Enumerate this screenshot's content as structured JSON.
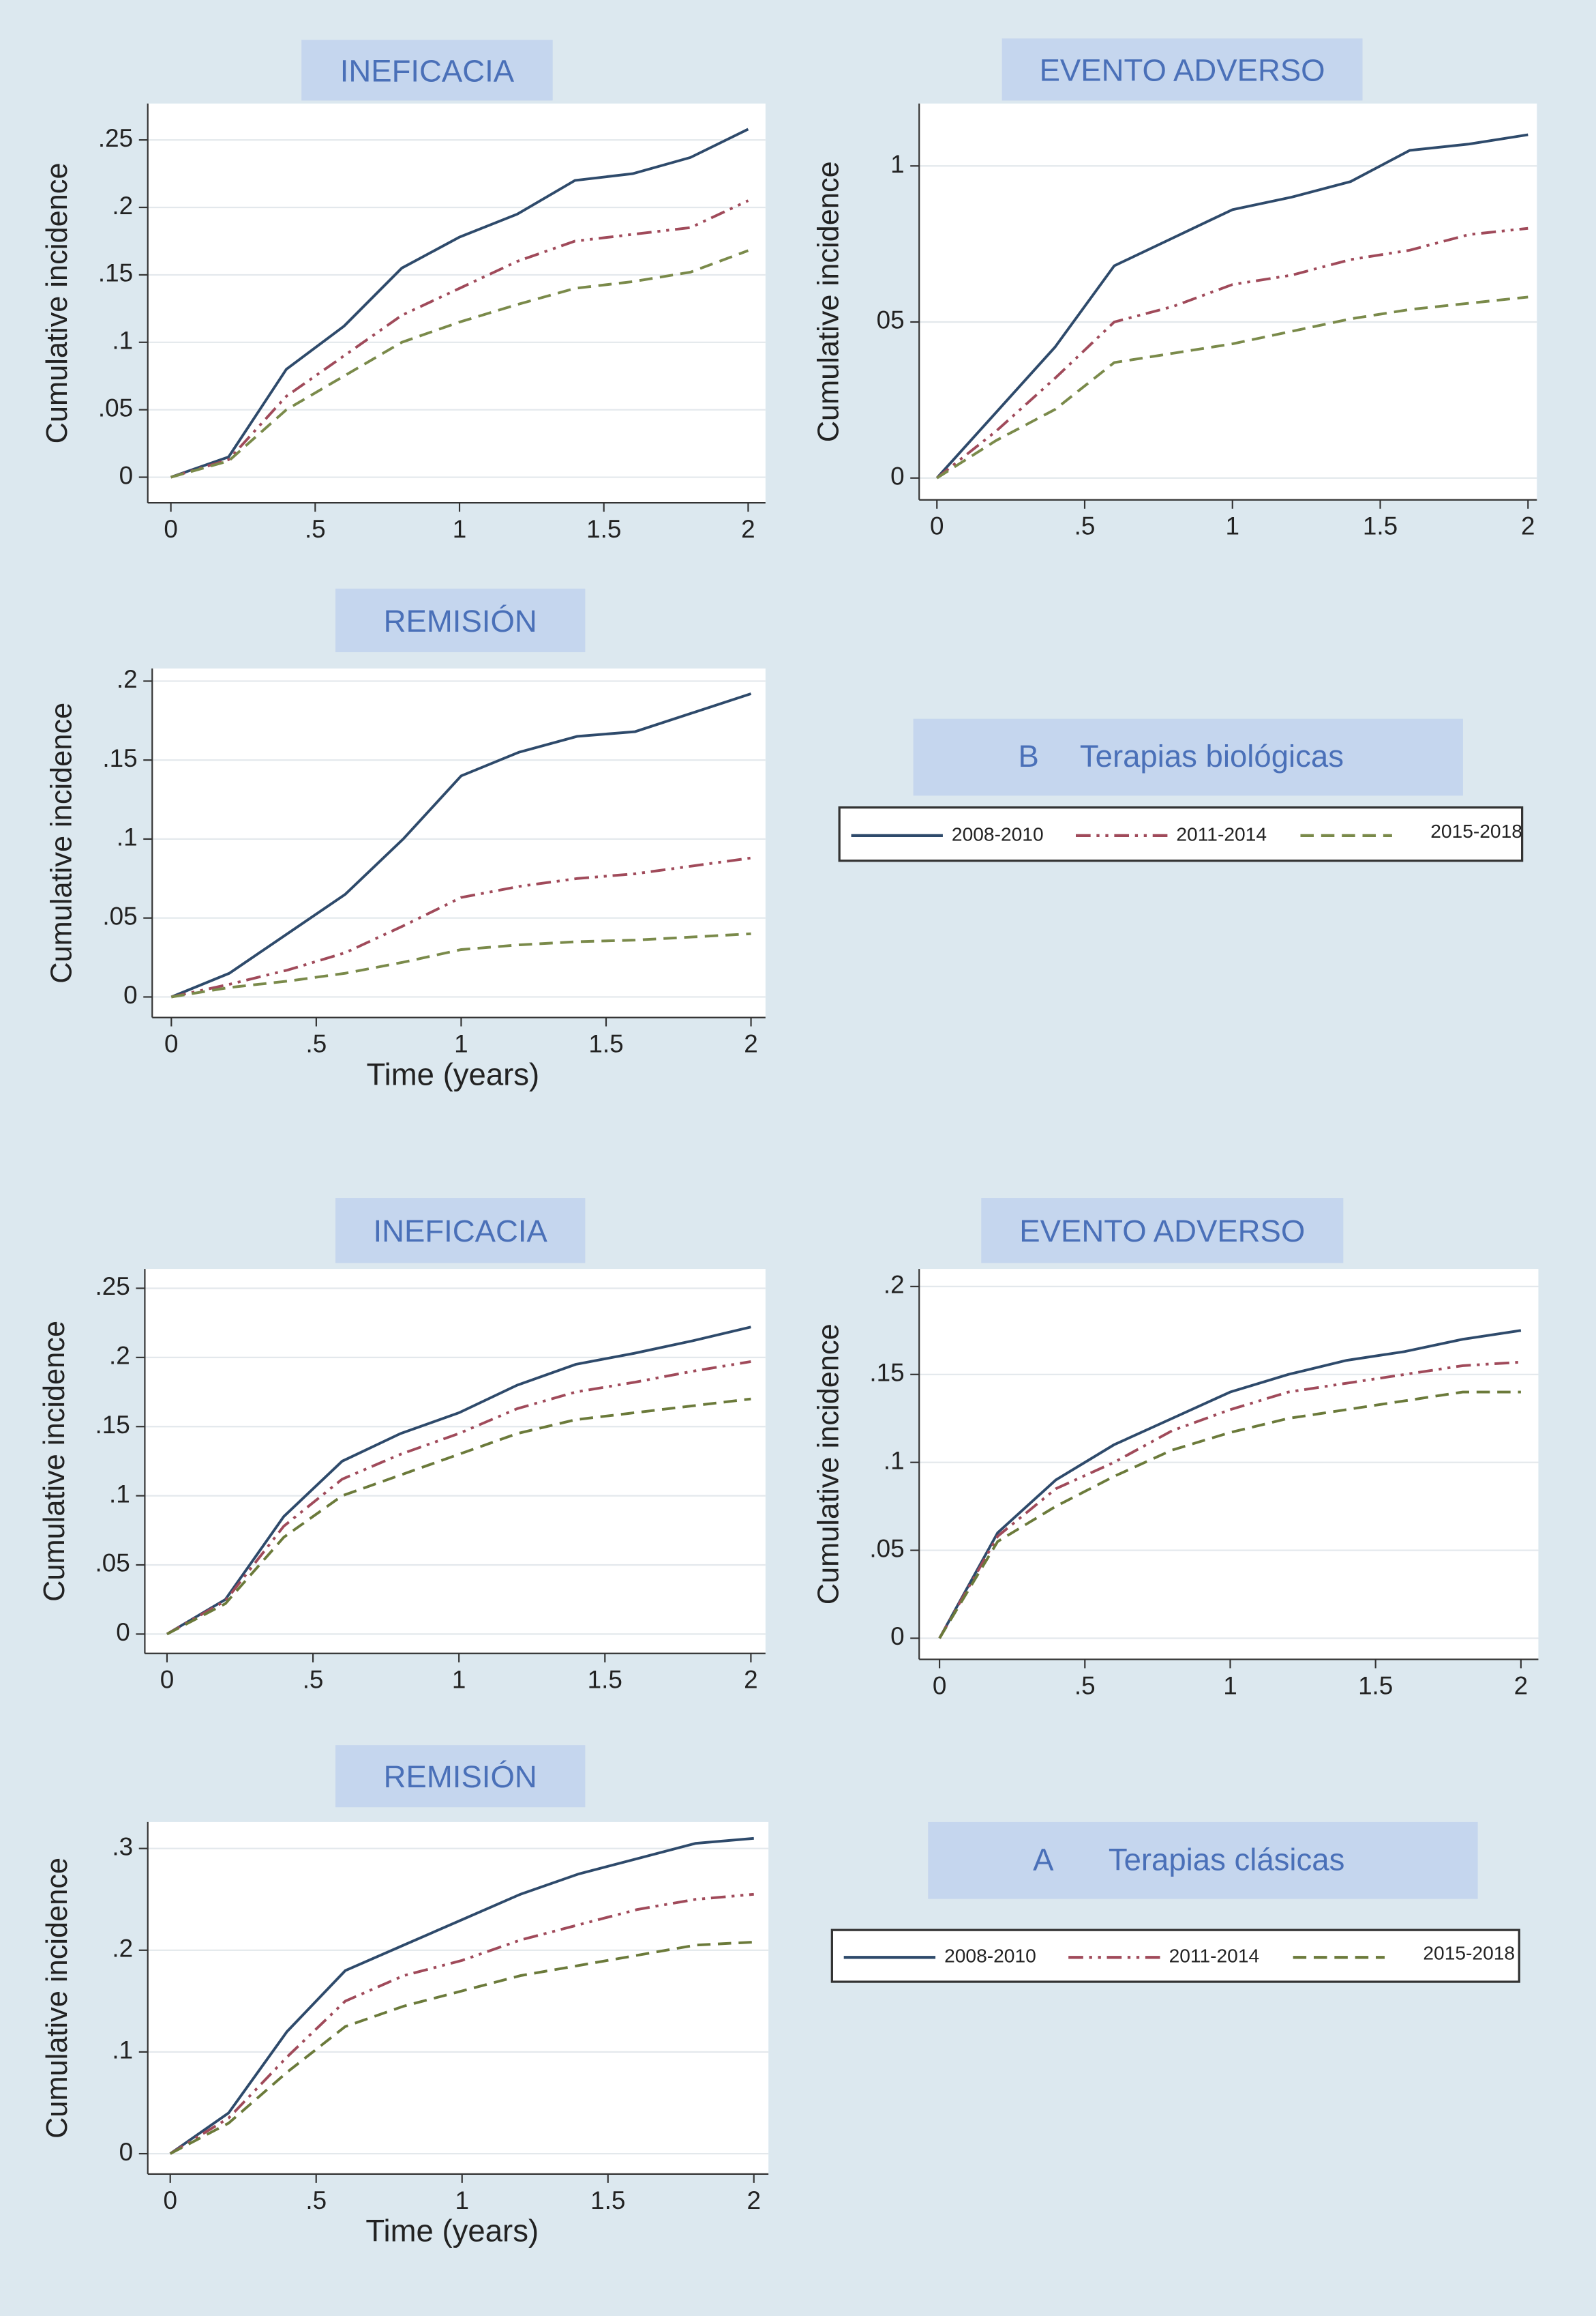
{
  "chart_data": [
    {
      "type": "line",
      "title": "INEFICACIA",
      "ylabel": "Cumulative incidence",
      "grid": true,
      "x": [
        0,
        0.2,
        0.4,
        0.6,
        0.8,
        1,
        1.2,
        1.4,
        1.6,
        1.8,
        2
      ],
      "xlim": [
        -0.08,
        2.06
      ],
      "xticks": [
        0,
        {
          "value": 0.5,
          "label": ".5"
        },
        1,
        1.5,
        2
      ],
      "ylim": [
        -0.019,
        0.277
      ],
      "yticks": [
        0,
        {
          "value": 0.05,
          "label": ".05"
        },
        {
          "value": 0.1,
          "label": ".1"
        },
        {
          "value": 0.15,
          "label": ".15"
        },
        {
          "value": 0.2,
          "label": ".2"
        },
        {
          "value": 0.25,
          "label": ".25"
        }
      ],
      "series": [
        {
          "name": "2008-2010",
          "color": "#2e4a6b",
          "style": "solid",
          "values": [
            0,
            0.015,
            0.08,
            0.112,
            0.155,
            0.178,
            0.195,
            0.22,
            0.225,
            0.237,
            0.258
          ]
        },
        {
          "name": "2011-2014",
          "color": "#a04a5a",
          "style": "dashdot",
          "values": [
            0,
            0.013,
            0.06,
            0.09,
            0.12,
            0.14,
            0.16,
            0.175,
            0.18,
            0.185,
            0.205
          ]
        },
        {
          "name": "2015-2018",
          "color": "#7a8a4a",
          "style": "dashed",
          "values": [
            0,
            0.012,
            0.05,
            0.075,
            0.1,
            0.115,
            0.128,
            0.14,
            0.145,
            0.152,
            0.168
          ]
        }
      ]
    },
    {
      "type": "line",
      "title": "EVENTO ADVERSO",
      "ylabel": "Cumulative incidence",
      "grid": true,
      "x": [
        0,
        0.2,
        0.4,
        0.6,
        0.8,
        1,
        1.2,
        1.4,
        1.6,
        1.8,
        2
      ],
      "xlim": [
        -0.06,
        2.03
      ],
      "xticks": [
        0,
        {
          "value": 0.5,
          "label": ".5"
        },
        1,
        1.5,
        2
      ],
      "ylim": [
        -0.007,
        0.12
      ],
      "yticks": [
        0,
        {
          "value": 0.05,
          "label": "05"
        },
        {
          "value": 0.1,
          "label": "1"
        }
      ],
      "series": [
        {
          "name": "2008-2010",
          "color": "#2e4a6b",
          "style": "solid",
          "values": [
            0,
            0.021,
            0.042,
            0.068,
            0.077,
            0.086,
            0.09,
            0.095,
            0.105,
            0.107,
            0.11
          ]
        },
        {
          "name": "2011-2014",
          "color": "#a04a5a",
          "style": "dashdot",
          "values": [
            0,
            0.015,
            0.032,
            0.05,
            0.055,
            0.062,
            0.065,
            0.07,
            0.073,
            0.078,
            0.08
          ]
        },
        {
          "name": "2015-2018",
          "color": "#7a8a4a",
          "style": "dashed",
          "values": [
            0,
            0.012,
            0.022,
            0.037,
            0.04,
            0.043,
            0.047,
            0.051,
            0.054,
            0.056,
            0.058
          ]
        }
      ]
    },
    {
      "type": "line",
      "title": "REMISIÓN",
      "ylabel": "Cumulative incidence",
      "xlabel": "Time (years)",
      "grid": true,
      "x": [
        0,
        0.2,
        0.4,
        0.6,
        0.8,
        1,
        1.2,
        1.4,
        1.6,
        1.8,
        2
      ],
      "xlim": [
        -0.066,
        2.05
      ],
      "xticks": [
        0,
        {
          "value": 0.5,
          "label": ".5"
        },
        1,
        1.5,
        2
      ],
      "ylim": [
        -0.013,
        0.208
      ],
      "yticks": [
        0,
        {
          "value": 0.05,
          "label": ".05"
        },
        {
          "value": 0.1,
          "label": ".1"
        },
        {
          "value": 0.15,
          "label": ".15"
        },
        {
          "value": 0.2,
          "label": ".2"
        }
      ],
      "series": [
        {
          "name": "2008-2010",
          "color": "#2e4a6b",
          "style": "solid",
          "values": [
            0,
            0.015,
            0.04,
            0.065,
            0.1,
            0.14,
            0.155,
            0.165,
            0.168,
            0.18,
            0.192
          ]
        },
        {
          "name": "2011-2014",
          "color": "#a04a5a",
          "style": "dashdot",
          "values": [
            0,
            0.008,
            0.017,
            0.028,
            0.045,
            0.063,
            0.07,
            0.075,
            0.078,
            0.083,
            0.088
          ]
        },
        {
          "name": "2015-2018",
          "color": "#7a8a4a",
          "style": "dashed",
          "values": [
            0,
            0.006,
            0.01,
            0.015,
            0.022,
            0.03,
            0.033,
            0.035,
            0.036,
            0.038,
            0.04
          ]
        }
      ]
    },
    {
      "type": "line",
      "title": "INEFICACIA",
      "ylabel": "Cumulative incidence",
      "grid": true,
      "x": [
        0,
        0.2,
        0.4,
        0.6,
        0.8,
        1,
        1.2,
        1.4,
        1.6,
        1.8,
        2
      ],
      "xlim": [
        -0.076,
        2.05
      ],
      "xticks": [
        0,
        {
          "value": 0.5,
          "label": ".5"
        },
        1,
        1.5,
        2
      ],
      "ylim": [
        -0.014,
        0.264
      ],
      "yticks": [
        0,
        {
          "value": 0.05,
          "label": ".05"
        },
        {
          "value": 0.1,
          "label": ".1"
        },
        {
          "value": 0.15,
          "label": ".15"
        },
        {
          "value": 0.2,
          "label": ".2"
        },
        {
          "value": 0.25,
          "label": ".25"
        }
      ],
      "series": [
        {
          "name": "2008-2010",
          "color": "#2e4a6b",
          "style": "solid",
          "values": [
            0,
            0.025,
            0.085,
            0.125,
            0.145,
            0.16,
            0.18,
            0.195,
            0.203,
            0.212,
            0.222
          ]
        },
        {
          "name": "2011-2014",
          "color": "#a04a5a",
          "style": "dashdot",
          "values": [
            0,
            0.024,
            0.078,
            0.112,
            0.13,
            0.145,
            0.163,
            0.175,
            0.182,
            0.19,
            0.197
          ]
        },
        {
          "name": "2015-2018",
          "color": "#6b7a3a",
          "style": "dashed",
          "values": [
            0,
            0.022,
            0.07,
            0.1,
            0.115,
            0.13,
            0.145,
            0.155,
            0.16,
            0.165,
            0.17
          ]
        }
      ]
    },
    {
      "type": "line",
      "title": "EVENTO ADVERSO",
      "ylabel": "Cumulative incidence",
      "grid": true,
      "x": [
        0,
        0.2,
        0.4,
        0.6,
        0.8,
        1,
        1.2,
        1.4,
        1.6,
        1.8,
        2
      ],
      "xlim": [
        -0.07,
        2.06
      ],
      "xticks": [
        0,
        {
          "value": 0.5,
          "label": ".5"
        },
        1,
        1.5,
        2
      ],
      "ylim": [
        -0.012,
        0.21
      ],
      "yticks": [
        0,
        {
          "value": 0.05,
          "label": ".05"
        },
        {
          "value": 0.1,
          "label": ".1"
        },
        {
          "value": 0.15,
          "label": ".15"
        },
        {
          "value": 0.2,
          "label": ".2"
        }
      ],
      "series": [
        {
          "name": "2008-2010",
          "color": "#2e4a6b",
          "style": "solid",
          "values": [
            0,
            0.06,
            0.09,
            0.11,
            0.125,
            0.14,
            0.15,
            0.158,
            0.163,
            0.17,
            0.175
          ]
        },
        {
          "name": "2011-2014",
          "color": "#a04a5a",
          "style": "dashdot",
          "values": [
            0,
            0.058,
            0.085,
            0.1,
            0.118,
            0.13,
            0.14,
            0.145,
            0.15,
            0.155,
            0.157
          ]
        },
        {
          "name": "2015-2018",
          "color": "#6b7a3a",
          "style": "dashed",
          "values": [
            0,
            0.055,
            0.075,
            0.092,
            0.107,
            0.117,
            0.125,
            0.13,
            0.135,
            0.14,
            0.14
          ]
        }
      ]
    },
    {
      "type": "line",
      "title": "REMISIÓN",
      "ylabel": "Cumulative incidence",
      "xlabel": "Time (years)",
      "grid": true,
      "x": [
        0,
        0.2,
        0.4,
        0.6,
        0.8,
        1,
        1.2,
        1.4,
        1.6,
        1.8,
        2
      ],
      "xlim": [
        -0.077,
        2.05
      ],
      "xticks": [
        0,
        {
          "value": 0.5,
          "label": ".5"
        },
        1,
        1.5,
        2
      ],
      "ylim": [
        -0.02,
        0.326
      ],
      "yticks": [
        0,
        {
          "value": 0.1,
          "label": ".1"
        },
        {
          "value": 0.2,
          "label": ".2"
        },
        {
          "value": 0.3,
          "label": ".3"
        }
      ],
      "series": [
        {
          "name": "2008-2010",
          "color": "#2e4a6b",
          "style": "solid",
          "values": [
            0,
            0.04,
            0.12,
            0.18,
            0.205,
            0.23,
            0.255,
            0.275,
            0.29,
            0.305,
            0.31
          ]
        },
        {
          "name": "2011-2014",
          "color": "#a04a5a",
          "style": "dashdot",
          "values": [
            0,
            0.035,
            0.095,
            0.15,
            0.175,
            0.19,
            0.21,
            0.225,
            0.24,
            0.25,
            0.255
          ]
        },
        {
          "name": "2015-2018",
          "color": "#6b7a3a",
          "style": "dashed",
          "values": [
            0,
            0.03,
            0.08,
            0.125,
            0.145,
            0.16,
            0.175,
            0.185,
            0.195,
            0.205,
            0.208
          ]
        }
      ]
    }
  ],
  "panels": [
    {
      "letter": "B",
      "title": "Terapias biológicas"
    },
    {
      "letter": "A",
      "title": "Terapias clásicas"
    }
  ]
}
